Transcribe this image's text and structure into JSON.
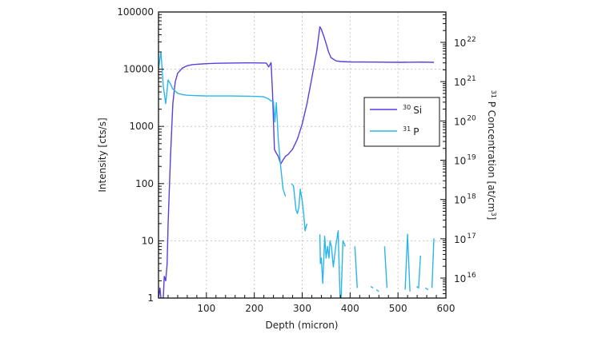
{
  "chart_data": {
    "type": "line",
    "title": "",
    "xlabel": "Depth (micron)",
    "ylabel": "Intensity [cts/s]",
    "y2label": "³¹ P Concentration [at/cm³]",
    "xlim": [
      0,
      600
    ],
    "ylim": [
      1,
      100000
    ],
    "yscale": "log",
    "y2lim": [
      3000000000000000.0,
      5e+22
    ],
    "y2scale": "log",
    "grid": true,
    "legend_position": "right-inside",
    "x_ticks": [
      "100",
      "200",
      "300",
      "400",
      "500",
      "600"
    ],
    "y_ticks": [
      "1",
      "10",
      "100",
      "1000",
      "10000",
      "100000"
    ],
    "y2_ticks": [
      "10^16",
      "10^17",
      "10^18",
      "10^19",
      "10^20",
      "10^21",
      "10^22"
    ],
    "series": [
      {
        "name": "30 Si",
        "label_sup": "30",
        "label_main": "Si",
        "color": "#5b3de0",
        "axis": "left",
        "x": [
          0,
          3,
          5,
          10,
          12,
          15,
          18,
          20,
          25,
          30,
          35,
          40,
          50,
          60,
          70,
          80,
          100,
          120,
          150,
          180,
          200,
          225,
          230,
          235,
          238,
          242,
          245,
          250,
          255,
          260,
          265,
          270,
          280,
          290,
          300,
          310,
          320,
          330,
          337,
          340,
          345,
          350,
          355,
          360,
          370,
          380,
          400,
          450,
          500,
          550,
          575
        ],
        "y": [
          1,
          1.5,
          1,
          1,
          2.4,
          2,
          4,
          20,
          300,
          2500,
          6000,
          8500,
          10500,
          11500,
          12000,
          12200,
          12500,
          12700,
          12800,
          12900,
          12900,
          12800,
          11000,
          13000,
          4000,
          400,
          350,
          300,
          220,
          260,
          300,
          320,
          400,
          600,
          1100,
          2500,
          7000,
          20000,
          55000,
          50000,
          38000,
          28000,
          20000,
          16000,
          14000,
          13600,
          13400,
          13300,
          13200,
          13300,
          13200
        ]
      },
      {
        "name": "31 P",
        "label_sup": "31",
        "label_main": "P",
        "color": "#29b6ea",
        "axis": "left",
        "x": [
          0,
          5,
          10,
          15,
          20,
          25,
          30,
          40,
          50,
          60,
          80,
          100,
          150,
          200,
          220,
          230,
          235,
          240,
          243,
          246,
          250,
          255,
          260,
          265
        ],
        "y": [
          10000,
          20000,
          5000,
          2500,
          6500,
          5500,
          4500,
          3800,
          3600,
          3500,
          3450,
          3400,
          3400,
          3350,
          3300,
          3000,
          2800,
          2700,
          1200,
          2600,
          600,
          200,
          80,
          60
        ]
      }
    ],
    "p_sparse_segments": [
      [
        [
          278,
          100
        ],
        [
          282,
          90
        ],
        [
          287,
          35
        ],
        [
          290,
          30
        ],
        [
          293,
          38
        ],
        [
          296,
          80
        ],
        [
          300,
          50
        ],
        [
          303,
          30
        ],
        [
          306,
          15
        ],
        [
          310,
          20
        ]
      ],
      [
        [
          337,
          13
        ],
        [
          338,
          4
        ],
        [
          340,
          5
        ],
        [
          343,
          1.8
        ],
        [
          347,
          12
        ],
        [
          350,
          5
        ],
        [
          353,
          8
        ],
        [
          356,
          5
        ],
        [
          358,
          10
        ],
        [
          361,
          8
        ],
        [
          365,
          3.5
        ],
        [
          370,
          8
        ],
        [
          375,
          15
        ],
        [
          380,
          0.5
        ],
        [
          385,
          10
        ],
        [
          390,
          8
        ]
      ],
      [
        [
          410,
          8
        ],
        [
          415,
          1.5
        ]
      ],
      [
        [
          443,
          1.6
        ],
        [
          448,
          1.5
        ]
      ],
      [
        [
          455,
          1.4
        ],
        [
          460,
          1.3
        ]
      ],
      [
        [
          472,
          8
        ],
        [
          477,
          1.5
        ]
      ],
      [
        [
          515,
          1.4
        ],
        [
          520,
          13
        ],
        [
          525,
          1.3
        ]
      ],
      [
        [
          539,
          1.6
        ],
        [
          543,
          1.5
        ],
        [
          547,
          5.5
        ]
      ],
      [
        [
          557,
          1.5
        ],
        [
          563,
          1.4
        ]
      ],
      [
        [
          571,
          1.5
        ],
        [
          575,
          11
        ]
      ]
    ]
  },
  "labels": {
    "x_axis_title": "Depth (micron)",
    "y_axis_title": "Intensity [cts/s]",
    "y2_axis_title_sup": "31",
    "y2_axis_title_main": " P Concentration [at/cm",
    "y2_axis_title_unit_sup": "3",
    "y2_axis_title_close": "]",
    "x_ticks": [
      "100",
      "200",
      "300",
      "400",
      "500",
      "600"
    ],
    "y_ticks": [
      "1",
      "10",
      "100",
      "1000",
      "10000",
      "100000"
    ],
    "y2_ticks": [
      {
        "base": "10",
        "exp": "16"
      },
      {
        "base": "10",
        "exp": "17"
      },
      {
        "base": "10",
        "exp": "18"
      },
      {
        "base": "10",
        "exp": "19"
      },
      {
        "base": "10",
        "exp": "20"
      },
      {
        "base": "10",
        "exp": "21"
      },
      {
        "base": "10",
        "exp": "22"
      }
    ]
  },
  "legend": {
    "items": [
      {
        "sup": "30",
        "label": "Si",
        "color": "#5b3de0"
      },
      {
        "sup": "31",
        "label": "P",
        "color": "#29b6ea"
      }
    ]
  }
}
